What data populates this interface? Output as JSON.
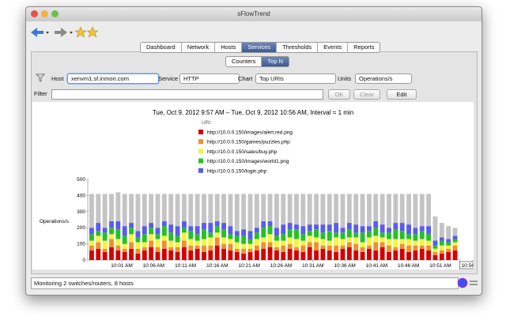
{
  "window": {
    "title": "sFlowTrend"
  },
  "tabs": [
    "Dashboard",
    "Network",
    "Hosts",
    "Services",
    "Thresholds",
    "Events",
    "Reports"
  ],
  "selected_tab": 3,
  "subtabs": [
    "Counters",
    "Top N"
  ],
  "selected_subtab": 1,
  "controls": {
    "host_label": "Host",
    "host_value": "xenvm1.sf.inmon.com",
    "service_label": "Service",
    "service_value": "HTTP",
    "chart_label": "Chart",
    "chart_value": "Top URIs",
    "units_label": "Units",
    "units_value": "Operations/s",
    "filter_label": "Filter",
    "ok": "OK",
    "clear": "Clear",
    "edit": "Edit"
  },
  "status": "Monitoring 2 switches/routers, 8 hosts",
  "chart": {
    "type": "bar",
    "stacked": true,
    "title": "Tue, Oct 9, 2012 9:57 AM – Tue, Oct 9, 2012 10:56 AM, Interval = 1 min",
    "legend_title": "URI",
    "ylabel": "Operations/s",
    "ylim": [
      0,
      500
    ],
    "yticks": [
      0,
      100,
      200,
      300,
      400,
      500
    ],
    "xtick_labels": [
      "10:01 AM",
      "10:06 AM",
      "10:11 AM",
      "10:16 AM",
      "10:21 AM",
      "10:26 AM",
      "10:31 AM",
      "10:36 AM",
      "10:41 AM",
      "10:46 AM",
      "10:51 AM",
      "10:56 AM"
    ],
    "series": [
      {
        "name": "http://10.0.0.150/images/alert.red.png",
        "color": "#d40000",
        "values": [
          60,
          70,
          50,
          80,
          60,
          50,
          70,
          40,
          60,
          80,
          50,
          70,
          60,
          50,
          80,
          60,
          70,
          50,
          60,
          90,
          70,
          60,
          50,
          40,
          50,
          60,
          70,
          80,
          60,
          50,
          70,
          60,
          50,
          80,
          60,
          70,
          60,
          50,
          70,
          80,
          60,
          50,
          70,
          60,
          80,
          50,
          60,
          70,
          50,
          60,
          70,
          60,
          30,
          40,
          50,
          60
        ]
      },
      {
        "name": "http://10.0.0.150/games/puzzles.php",
        "color": "#f0902a",
        "values": [
          30,
          40,
          20,
          50,
          30,
          20,
          40,
          30,
          20,
          40,
          30,
          50,
          20,
          30,
          40,
          30,
          20,
          40,
          30,
          50,
          30,
          40,
          20,
          30,
          20,
          30,
          40,
          30,
          20,
          40,
          30,
          20,
          40,
          30,
          50,
          20,
          30,
          40,
          20,
          30,
          40,
          30,
          20,
          50,
          30,
          40,
          20,
          30,
          40,
          30,
          20,
          30,
          20,
          20,
          20,
          30
        ]
      },
      {
        "name": "http://10.0.0.150/sales/buy.php",
        "color": "#f5f53a",
        "values": [
          30,
          40,
          50,
          30,
          40,
          30,
          50,
          40,
          30,
          40,
          50,
          30,
          40,
          30,
          50,
          40,
          30,
          40,
          50,
          30,
          40,
          30,
          40,
          30,
          30,
          40,
          30,
          50,
          40,
          30,
          40,
          50,
          30,
          40,
          30,
          40,
          30,
          50,
          40,
          30,
          40,
          30,
          50,
          40,
          30,
          40,
          50,
          30,
          40,
          30,
          40,
          30,
          20,
          30,
          20,
          20
        ]
      },
      {
        "name": "http://10.0.0.150/images/world1.png",
        "color": "#22c222",
        "values": [
          40,
          30,
          50,
          40,
          60,
          50,
          40,
          30,
          50,
          40,
          30,
          60,
          50,
          40,
          30,
          50,
          40,
          60,
          30,
          40,
          50,
          30,
          40,
          50,
          30,
          40,
          60,
          50,
          30,
          40,
          50,
          60,
          40,
          30,
          50,
          40,
          60,
          30,
          40,
          50,
          30,
          60,
          40,
          50,
          30,
          40,
          60,
          50,
          30,
          40,
          50,
          40,
          20,
          30,
          20,
          20
        ]
      },
      {
        "name": "http://10.0.0.150/login.php",
        "color": "#5a5af0",
        "values": [
          40,
          50,
          30,
          40,
          50,
          60,
          30,
          40,
          50,
          30,
          40,
          30,
          50,
          60,
          40,
          30,
          50,
          40,
          60,
          30,
          40,
          50,
          30,
          40,
          50,
          30,
          40,
          30,
          50,
          60,
          40,
          30,
          50,
          40,
          30,
          50,
          40,
          60,
          30,
          40,
          50,
          40,
          30,
          40,
          50,
          30,
          40,
          50,
          60,
          40,
          30,
          50,
          30,
          20,
          20,
          20
        ]
      },
      {
        "color": "#c4c4c4",
        "values": [
          210,
          180,
          210,
          170,
          180,
          200,
          180,
          230,
          200,
          180,
          210,
          170,
          190,
          200,
          170,
          200,
          200,
          180,
          180,
          170,
          180,
          200,
          230,
          220,
          230,
          210,
          170,
          170,
          210,
          190,
          180,
          190,
          200,
          190,
          190,
          190,
          190,
          180,
          210,
          180,
          190,
          200,
          200,
          170,
          190,
          210,
          180,
          180,
          190,
          210,
          200,
          200,
          150,
          90,
          80,
          50
        ]
      }
    ]
  }
}
